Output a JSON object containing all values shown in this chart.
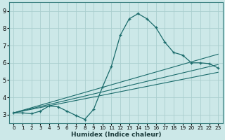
{
  "xlabel": "Humidex (Indice chaleur)",
  "xlim": [
    -0.5,
    23.5
  ],
  "ylim": [
    2.5,
    9.5
  ],
  "xticks": [
    0,
    1,
    2,
    3,
    4,
    5,
    6,
    7,
    8,
    9,
    10,
    11,
    12,
    13,
    14,
    15,
    16,
    17,
    18,
    19,
    20,
    21,
    22,
    23
  ],
  "yticks": [
    3,
    4,
    5,
    6,
    7,
    8,
    9
  ],
  "bg_color": "#cce8e8",
  "grid_color": "#aacece",
  "line_color": "#1a6b6b",
  "main_x": [
    0,
    1,
    2,
    3,
    4,
    5,
    6,
    7,
    8,
    9,
    10,
    11,
    12,
    13,
    14,
    15,
    16,
    17,
    18,
    19,
    20,
    21,
    22,
    23
  ],
  "main_y": [
    3.1,
    3.1,
    3.05,
    3.2,
    3.5,
    3.45,
    3.2,
    2.95,
    2.72,
    3.3,
    4.6,
    5.8,
    7.6,
    8.55,
    8.85,
    8.55,
    8.05,
    7.2,
    6.6,
    6.45,
    6.0,
    6.0,
    5.95,
    5.7
  ],
  "trend_lines": [
    {
      "x0": 0,
      "y0": 3.1,
      "x1": 23,
      "y1": 5.45
    },
    {
      "x0": 0,
      "y0": 3.1,
      "x1": 23,
      "y1": 5.9
    },
    {
      "x0": 0,
      "y0": 3.1,
      "x1": 23,
      "y1": 6.5
    }
  ]
}
